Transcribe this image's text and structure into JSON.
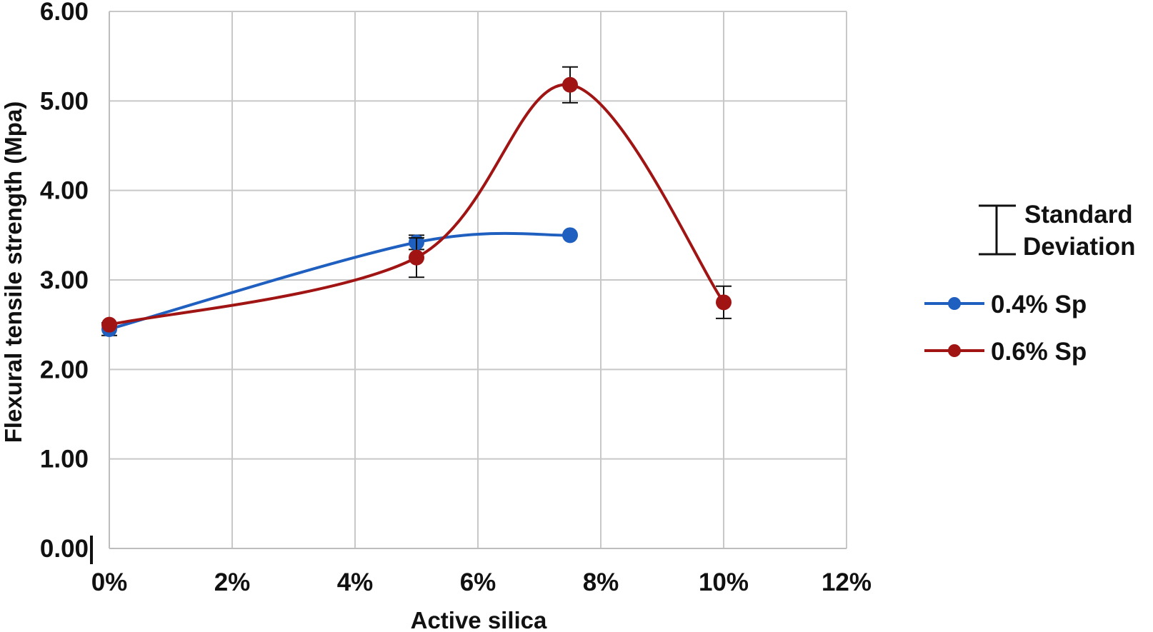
{
  "chart_data": {
    "type": "line",
    "xlabel": "Active silica",
    "ylabel": "Flexural tensile strength (Mpa)",
    "x_ticks": [
      "0%",
      "2%",
      "4%",
      "6%",
      "8%",
      "10%",
      "12%"
    ],
    "y_ticks": [
      "0.00",
      "1.00",
      "2.00",
      "3.00",
      "4.00",
      "5.00",
      "6.00"
    ],
    "xlim": [
      0,
      12
    ],
    "ylim": [
      0,
      6
    ],
    "grid": true,
    "smoothed": true,
    "legend_position": "right",
    "error_bar_legend": {
      "line1": "Standard",
      "line2": "Deviation"
    },
    "series": [
      {
        "name": "0.4% Sp",
        "color": "#1f5fbf",
        "x": [
          0,
          5,
          7.5
        ],
        "y": [
          2.45,
          3.42,
          3.5
        ],
        "error": [
          0.07,
          0.08,
          0.0
        ]
      },
      {
        "name": "0.6% Sp",
        "color": "#a01414",
        "x": [
          0,
          5,
          7.5,
          10
        ],
        "y": [
          2.5,
          3.25,
          5.18,
          2.75
        ],
        "error": [
          0.0,
          0.22,
          0.2,
          0.18
        ]
      }
    ]
  }
}
